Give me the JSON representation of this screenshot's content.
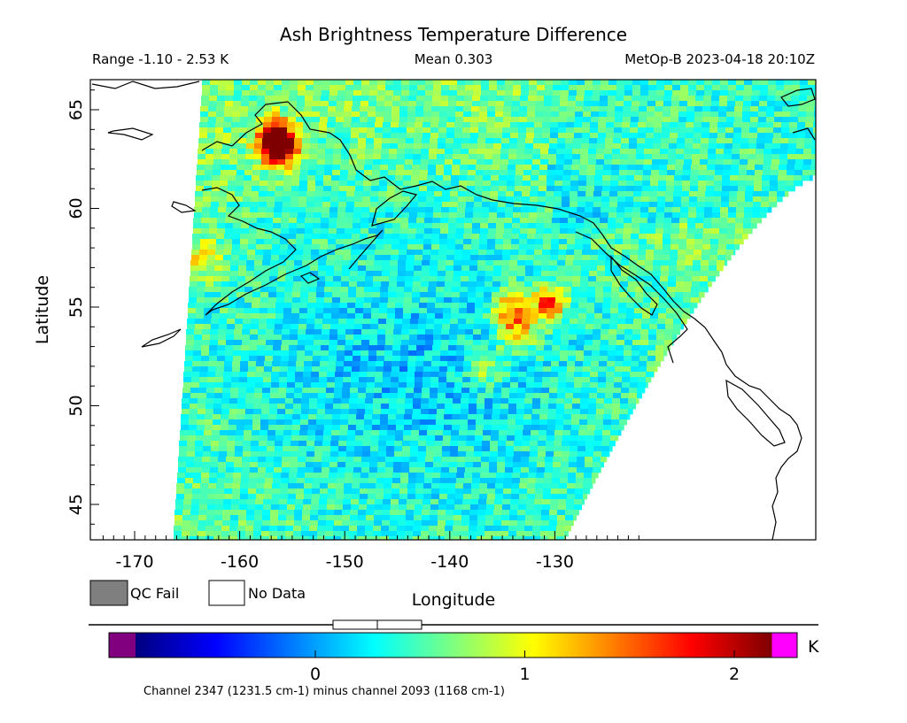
{
  "header": {
    "title": "Ash Brightness Temperature Difference",
    "range": "Range -1.10 - 2.53 K",
    "mean": "Mean 0.303",
    "satellite_time": "MetOp-B 2023-04-18 20:10Z"
  },
  "legend": {
    "qc_fail": "QC Fail",
    "no_data": "No Data",
    "qc_fail_color": "#7f7f7f",
    "no_data_color": "#ffffff"
  },
  "colorbar": {
    "unit": "K",
    "ticks": [
      "0",
      "1",
      "2"
    ],
    "tick_values": [
      0,
      1,
      2
    ],
    "caption": "Channel 2347 (1231.5 cm-1) minus channel 2093 (1168 cm-1)",
    "range_k": [
      -1.1,
      2.53
    ],
    "colors": [
      "#800080",
      "#00007f",
      "#0000ff",
      "#007fff",
      "#00ffff",
      "#7fff7f",
      "#ffff00",
      "#ff7f00",
      "#ff0000",
      "#7f0000",
      "#ff00ff"
    ],
    "slider_value": 0.303
  },
  "chart_data": {
    "type": "heatmap",
    "title": "Ash Brightness Temperature Difference",
    "xlabel": "Longitude",
    "ylabel": "Latitude",
    "xlim": [
      -173.5,
      -122
    ],
    "ylim": [
      43.2,
      66.5
    ],
    "xticks": [
      -170,
      -160,
      -150,
      -140,
      -130
    ],
    "yticks": [
      45,
      50,
      55,
      60,
      65
    ],
    "xtick_labels": [
      "-170",
      "-160",
      "-150",
      "-140",
      "-130"
    ],
    "ytick_labels": [
      "45",
      "50",
      "55",
      "60",
      "65"
    ],
    "value_range": [
      -1.1,
      2.53
    ],
    "mean": 0.303,
    "unit": "K",
    "hotspots": [
      {
        "lon": -156.2,
        "lat": 63.0,
        "value": 2.5
      },
      {
        "lon": -156.6,
        "lat": 63.6,
        "value": 2.2
      },
      {
        "lon": -134.2,
        "lat": 54.9,
        "value": 1.8
      },
      {
        "lon": -130.6,
        "lat": 55.2,
        "value": 2.0
      },
      {
        "lon": -133.5,
        "lat": 53.7,
        "value": 1.5
      },
      {
        "lon": -163.6,
        "lat": 57.5,
        "value": 1.3
      },
      {
        "lon": -136.5,
        "lat": 52.0,
        "value": 1.2
      }
    ]
  }
}
